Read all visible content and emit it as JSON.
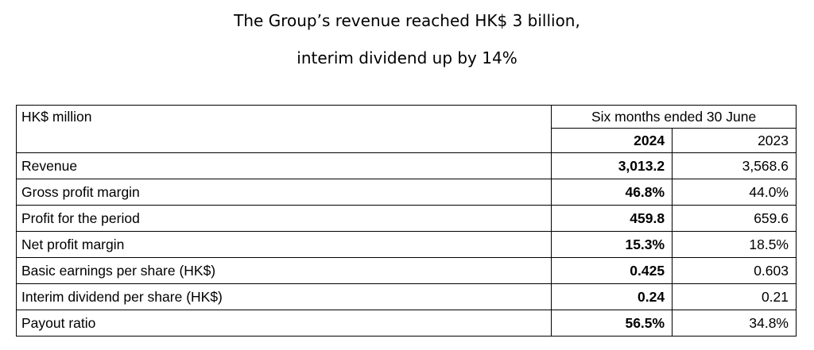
{
  "headline": {
    "line1": "The Group’s revenue reached HK$ 3 billion,",
    "line2": "interim dividend up by 14%"
  },
  "table": {
    "unit_label": "HK$ million",
    "period_label": "Six months ended 30 June",
    "year_current": "2024",
    "year_prior": "2023",
    "rows": [
      {
        "label": "Revenue",
        "current": "3,013.2",
        "prior": "3,568.6"
      },
      {
        "label": "Gross profit margin",
        "current": "46.8%",
        "prior": "44.0%"
      },
      {
        "label": "Profit for the period",
        "current": "459.8",
        "prior": "659.6"
      },
      {
        "label": "Net profit margin",
        "current": "15.3%",
        "prior": "18.5%"
      },
      {
        "label": "Basic earnings per share (HK$)",
        "current": "0.425",
        "prior": "0.603"
      },
      {
        "label": "Interim dividend per share (HK$)",
        "current": "0.24",
        "prior": "0.21"
      },
      {
        "label": "Payout ratio",
        "current": "56.5%",
        "prior": "34.8%"
      }
    ]
  }
}
